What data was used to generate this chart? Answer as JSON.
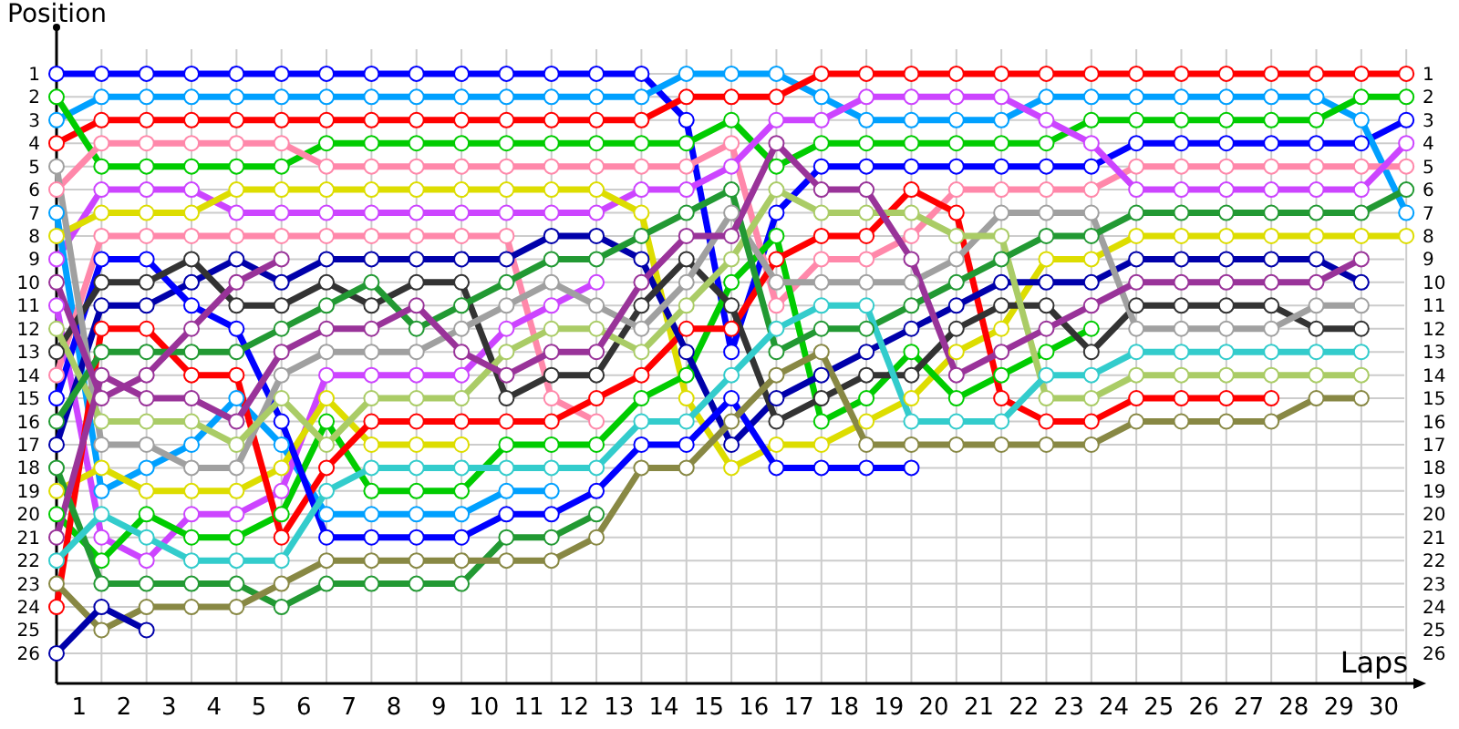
{
  "chart_data": {
    "type": "line",
    "xlabel": "Laps",
    "ylabel": "Position",
    "marker": "circle",
    "grid": true,
    "x": [
      0,
      1,
      2,
      3,
      4,
      5,
      6,
      7,
      8,
      9,
      10,
      11,
      12,
      13,
      14,
      15,
      16,
      17,
      18,
      19,
      20,
      21,
      22,
      23,
      24,
      25,
      26,
      27,
      28,
      29,
      30
    ],
    "xlim": [
      0,
      30.2
    ],
    "xticks": [
      {
        "value": 0,
        "label": null
      },
      {
        "value": 0.5,
        "label": "1"
      },
      {
        "value": 1,
        "label": null
      },
      {
        "value": 1.5,
        "label": "2"
      },
      {
        "value": 2,
        "label": null
      },
      {
        "value": 2.5,
        "label": "3"
      },
      {
        "value": 3,
        "label": null
      },
      {
        "value": 3.5,
        "label": "4"
      },
      {
        "value": 4,
        "label": null
      },
      {
        "value": 4.5,
        "label": "5"
      },
      {
        "value": 5,
        "label": null
      },
      {
        "value": 5.5,
        "label": "6"
      },
      {
        "value": 6,
        "label": null
      },
      {
        "value": 6.5,
        "label": "7"
      },
      {
        "value": 7,
        "label": null
      },
      {
        "value": 7.5,
        "label": "8"
      },
      {
        "value": 8,
        "label": null
      },
      {
        "value": 8.5,
        "label": "9"
      },
      {
        "value": 9,
        "label": null
      },
      {
        "value": 9.5,
        "label": "10"
      },
      {
        "value": 10,
        "label": null
      },
      {
        "value": 10.5,
        "label": "11"
      },
      {
        "value": 11,
        "label": null
      },
      {
        "value": 11.5,
        "label": "12"
      },
      {
        "value": 12,
        "label": null
      },
      {
        "value": 12.5,
        "label": "13"
      },
      {
        "value": 13,
        "label": null
      },
      {
        "value": 13.5,
        "label": "14"
      },
      {
        "value": 14,
        "label": null
      },
      {
        "value": 14.5,
        "label": "15"
      },
      {
        "value": 15,
        "label": null
      },
      {
        "value": 15.5,
        "label": "16"
      },
      {
        "value": 16,
        "label": null
      },
      {
        "value": 16.5,
        "label": "17"
      },
      {
        "value": 17,
        "label": null
      },
      {
        "value": 17.5,
        "label": "18"
      },
      {
        "value": 18,
        "label": null
      },
      {
        "value": 18.5,
        "label": "19"
      },
      {
        "value": 19,
        "label": null
      },
      {
        "value": 19.5,
        "label": "20"
      },
      {
        "value": 20,
        "label": null
      },
      {
        "value": 20.5,
        "label": "21"
      },
      {
        "value": 21,
        "label": null
      },
      {
        "value": 21.5,
        "label": "22"
      },
      {
        "value": 22,
        "label": null
      },
      {
        "value": 22.5,
        "label": "23"
      },
      {
        "value": 23,
        "label": null
      },
      {
        "value": 23.5,
        "label": "24"
      },
      {
        "value": 24,
        "label": null
      },
      {
        "value": 24.5,
        "label": "25"
      },
      {
        "value": 25,
        "label": null
      },
      {
        "value": 25.5,
        "label": "26"
      },
      {
        "value": 26,
        "label": null
      },
      {
        "value": 26.5,
        "label": "27"
      },
      {
        "value": 27,
        "label": null
      },
      {
        "value": 27.5,
        "label": "28"
      },
      {
        "value": 28,
        "label": null
      },
      {
        "value": 28.5,
        "label": "29"
      },
      {
        "value": 29,
        "label": null
      },
      {
        "value": 29.5,
        "label": "30"
      },
      {
        "value": 30,
        "label": null
      }
    ],
    "ylim": [
      27.3,
      -1
    ],
    "yticks": [
      1,
      2,
      3,
      4,
      5,
      6,
      7,
      8,
      9,
      10,
      11,
      12,
      13,
      14,
      15,
      16,
      17,
      18,
      19,
      20,
      21,
      22,
      23,
      24,
      25,
      26
    ],
    "y2lim": [
      27.3,
      -1
    ],
    "y2ticks": [
      1,
      2,
      3,
      4,
      5,
      6,
      7,
      8,
      9,
      10,
      11,
      12,
      13,
      14,
      15,
      16,
      17,
      18,
      19,
      20,
      21,
      22,
      23,
      24,
      25,
      26
    ],
    "series": [
      {
        "color": "#0000ff",
        "values": [
          1,
          1,
          1,
          1,
          1,
          1,
          1,
          1,
          1,
          1,
          1,
          1,
          1,
          1,
          3,
          13,
          7,
          5,
          5,
          5,
          5,
          5,
          5,
          5,
          4,
          4,
          4,
          4,
          4,
          4,
          3
        ]
      },
      {
        "color": "#00a0ff",
        "values": [
          3,
          2,
          2,
          2,
          2,
          2,
          2,
          2,
          2,
          2,
          2,
          2,
          2,
          2,
          1,
          1,
          1,
          2,
          3,
          3,
          3,
          3,
          2,
          2,
          2,
          2,
          2,
          2,
          2,
          3,
          7
        ]
      },
      {
        "color": "#ff0000",
        "values": [
          4,
          3,
          3,
          3,
          3,
          3,
          3,
          3,
          3,
          3,
          3,
          3,
          3,
          3,
          2,
          2,
          2,
          1,
          1,
          1,
          1,
          1,
          1,
          1,
          1,
          1,
          1,
          1,
          1,
          1,
          1
        ]
      },
      {
        "color": "#00cc00",
        "values": [
          2,
          5,
          5,
          5,
          5,
          5,
          4,
          4,
          4,
          4,
          4,
          4,
          4,
          4,
          4,
          3,
          5,
          4,
          4,
          4,
          4,
          4,
          4,
          3,
          3,
          3,
          3,
          3,
          3,
          2,
          2
        ]
      },
      {
        "color": "#ff88aa",
        "values": [
          6,
          4,
          4,
          4,
          4,
          4,
          5,
          5,
          5,
          5,
          5,
          5,
          5,
          5,
          5,
          4,
          11,
          9,
          9,
          8,
          6,
          6,
          6,
          6,
          5,
          5,
          5,
          5,
          5,
          5,
          5
        ]
      },
      {
        "color": "#cc44ff",
        "values": [
          9,
          6,
          6,
          6,
          7,
          7,
          7,
          7,
          7,
          7,
          7,
          7,
          7,
          6,
          6,
          5,
          3,
          3,
          2,
          2,
          2,
          2,
          3,
          4,
          6,
          6,
          6,
          6,
          6,
          6,
          4
        ]
      },
      {
        "color": "#dddd00",
        "values": [
          8,
          7,
          7,
          7,
          6,
          6,
          6,
          6,
          6,
          6,
          6,
          6,
          6,
          7,
          15,
          18,
          17,
          17,
          16,
          15,
          13,
          12,
          9,
          9,
          8,
          8,
          8,
          8,
          8,
          8,
          8
        ]
      },
      {
        "color": "#00a0ff",
        "values": [
          7,
          19,
          18,
          17,
          15,
          17,
          20,
          20,
          20,
          20,
          19,
          19,
          null,
          null,
          null,
          null,
          null,
          null,
          null,
          null,
          null,
          null,
          null,
          null,
          null,
          null,
          null,
          null,
          null,
          null,
          null
        ]
      },
      {
        "color": "#ff88aa",
        "values": [
          14,
          8,
          8,
          8,
          8,
          8,
          8,
          8,
          8,
          8,
          8,
          15,
          16,
          null,
          null,
          null,
          null,
          null,
          null,
          null,
          null,
          null,
          null,
          null,
          null,
          null,
          null,
          null,
          null,
          null,
          null
        ]
      },
      {
        "color": "#cc44ff",
        "values": [
          11,
          21,
          22,
          20,
          20,
          19,
          14,
          14,
          14,
          14,
          12,
          11,
          10,
          null,
          null,
          null,
          null,
          null,
          null,
          null,
          null,
          null,
          null,
          null,
          null,
          null,
          null,
          null,
          null,
          null,
          null
        ]
      },
      {
        "color": "#dddd00",
        "values": [
          19,
          18,
          19,
          19,
          19,
          18,
          15,
          17,
          17,
          17,
          null,
          null,
          null,
          null,
          null,
          null,
          null,
          null,
          null,
          null,
          null,
          null,
          null,
          null,
          null,
          null,
          null,
          null,
          null,
          null,
          null
        ]
      },
      {
        "color": "#00cc00",
        "values": [
          20,
          22,
          20,
          21,
          21,
          20,
          16,
          19,
          19,
          19,
          17,
          17,
          17,
          15,
          14,
          10,
          8,
          16,
          15,
          13,
          15,
          14,
          13,
          12,
          null,
          null,
          null,
          null,
          null,
          null,
          null
        ]
      },
      {
        "color": "#ff0000",
        "values": [
          24,
          12,
          12,
          14,
          14,
          21,
          18,
          16,
          16,
          16,
          16,
          16,
          15,
          14,
          12,
          12,
          9,
          8,
          8,
          6,
          7,
          15,
          16,
          16,
          15,
          15,
          15,
          15,
          null,
          null,
          null
        ]
      },
      {
        "color": "#0000aa",
        "values": [
          17,
          11,
          11,
          10,
          9,
          10,
          9,
          9,
          9,
          9,
          9,
          8,
          8,
          9,
          13,
          17,
          15,
          14,
          13,
          12,
          11,
          10,
          10,
          10,
          9,
          9,
          9,
          9,
          9,
          10,
          null
        ]
      },
      {
        "color": "#0000ff",
        "values": [
          15,
          9,
          9,
          11,
          12,
          16,
          21,
          21,
          21,
          21,
          20,
          20,
          19,
          17,
          17,
          15,
          18,
          18,
          18,
          18,
          null,
          null,
          null,
          null,
          null,
          null,
          null,
          null,
          null,
          null,
          null
        ]
      },
      {
        "color": "#333333",
        "values": [
          13,
          10,
          10,
          9,
          11,
          11,
          10,
          11,
          10,
          10,
          15,
          14,
          14,
          11,
          9,
          11,
          16,
          15,
          14,
          14,
          12,
          11,
          11,
          13,
          11,
          11,
          11,
          11,
          12,
          12,
          null
        ]
      },
      {
        "color": "#a0a0a0",
        "values": [
          5,
          17,
          17,
          18,
          18,
          14,
          13,
          13,
          13,
          12,
          11,
          10,
          11,
          12,
          10,
          7,
          10,
          10,
          10,
          10,
          9,
          7,
          7,
          7,
          12,
          12,
          12,
          12,
          11,
          11,
          null
        ]
      },
      {
        "color": "#aacc66",
        "values": [
          12,
          16,
          16,
          16,
          17,
          15,
          17,
          15,
          15,
          15,
          13,
          12,
          12,
          13,
          11,
          9,
          6,
          7,
          7,
          7,
          8,
          8,
          15,
          15,
          14,
          14,
          14,
          14,
          14,
          14,
          null
        ]
      },
      {
        "color": "#229933",
        "values": [
          16,
          13,
          13,
          13,
          13,
          12,
          11,
          10,
          12,
          11,
          10,
          9,
          9,
          8,
          7,
          6,
          13,
          12,
          12,
          11,
          10,
          9,
          8,
          8,
          7,
          7,
          7,
          7,
          7,
          7,
          6
        ]
      },
      {
        "color": "#229933",
        "values": [
          18,
          23,
          23,
          23,
          23,
          24,
          23,
          23,
          23,
          23,
          21,
          21,
          20,
          null,
          null,
          null,
          null,
          null,
          null,
          null,
          null,
          null,
          null,
          null,
          null,
          null,
          null,
          null,
          null,
          null,
          null
        ]
      },
      {
        "color": "#993399",
        "values": [
          21,
          14,
          15,
          15,
          16,
          13,
          12,
          12,
          11,
          13,
          14,
          13,
          13,
          10,
          8,
          8,
          4,
          6,
          6,
          9,
          14,
          13,
          12,
          11,
          10,
          10,
          10,
          10,
          10,
          9,
          null
        ]
      },
      {
        "color": "#993399",
        "values": [
          10,
          15,
          14,
          12,
          10,
          9,
          null,
          null,
          null,
          null,
          null,
          null,
          null,
          null,
          null,
          null,
          null,
          null,
          null,
          null,
          null,
          null,
          null,
          null,
          null,
          null,
          null,
          null,
          null,
          null,
          null
        ]
      },
      {
        "color": "#33cccc",
        "values": [
          22,
          20,
          21,
          22,
          22,
          22,
          19,
          18,
          18,
          18,
          18,
          18,
          18,
          16,
          16,
          14,
          12,
          11,
          11,
          16,
          16,
          16,
          14,
          14,
          13,
          13,
          13,
          13,
          13,
          13,
          null
        ]
      },
      {
        "color": "#888844",
        "values": [
          23,
          25,
          24,
          24,
          24,
          23,
          22,
          22,
          22,
          22,
          22,
          22,
          21,
          18,
          18,
          16,
          14,
          13,
          17,
          17,
          17,
          17,
          17,
          17,
          16,
          16,
          16,
          16,
          15,
          15,
          null
        ]
      },
      {
        "color": "#0000aa",
        "values": [
          26,
          24,
          25,
          null,
          null,
          null,
          null,
          null,
          null,
          null,
          null,
          null,
          null,
          null,
          null,
          null,
          null,
          null,
          null,
          null,
          null,
          null,
          null,
          null,
          null,
          null,
          null,
          null,
          null,
          null,
          null
        ]
      }
    ]
  }
}
